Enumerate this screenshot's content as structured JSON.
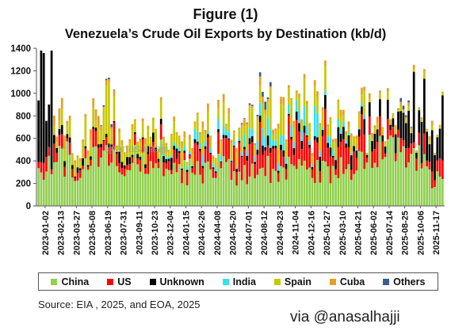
{
  "figure_label": "Figure (1)",
  "title": "Venezuela’s Crude Oil Exports by Destination (kb/d)",
  "source": "Source: EIA , 2025, and EOA, 2025",
  "credit": "via @anasalhajji",
  "watermark": "@anasalhajji",
  "legend": [
    {
      "name": "China",
      "color": "#92d050"
    },
    {
      "name": "US",
      "color": "#ff0000"
    },
    {
      "name": "Unknown",
      "color": "#000000"
    },
    {
      "name": "India",
      "color": "#33e0f0"
    },
    {
      "name": "Spain",
      "color": "#c8c800"
    },
    {
      "name": "Cuba",
      "color": "#e5a024"
    },
    {
      "name": "Others",
      "color": "#3a5f8a"
    }
  ],
  "chart_data": {
    "type": "bar",
    "stacked": true,
    "title": "Venezuela’s Crude Oil Exports by Destination (kb/d)",
    "ylim": [
      0,
      1400
    ],
    "yticks": [
      0,
      200,
      400,
      600,
      800,
      1000,
      1200,
      1400
    ],
    "grid": false,
    "legend_position": "bottom",
    "x_tick_labels": [
      "2023-01-02",
      "2023-02-13",
      "2023-03-27",
      "2023-05-08",
      "2023-06-19",
      "2023-07-31",
      "2023-09-11",
      "2023-10-23",
      "2023-12-04",
      "2024-01-15",
      "2024-02-26",
      "2024-04-08",
      "2024-05-20",
      "2024-07-01",
      "2024-08-12",
      "2024-09-23",
      "2024-11-04",
      "2024-12-16",
      "2025-01-27",
      "2025-03-10",
      "2025-04-21",
      "2025-06-02",
      "2025-07-14",
      "2025-08-25",
      "2025-10-06",
      "2025-11-17"
    ],
    "series_order": [
      "China",
      "US",
      "Unknown",
      "India",
      "Spain",
      "Cuba",
      "Others"
    ],
    "series_colors": [
      "#92d050",
      "#ff0000",
      "#000000",
      "#33e0f0",
      "#c8c800",
      "#e5a024",
      "#3a5f8a"
    ],
    "periods": [
      {
        "label": "2023-01-02",
        "values": [
          320,
          120,
          860,
          0,
          0,
          0,
          0
        ]
      },
      {
        "label": "2023-02-13",
        "values": [
          420,
          110,
          60,
          0,
          120,
          90,
          0
        ]
      },
      {
        "label": "2023-03-27",
        "values": [
          350,
          100,
          50,
          0,
          110,
          30,
          0
        ]
      },
      {
        "label": "2023-05-08",
        "values": [
          380,
          110,
          20,
          0,
          140,
          60,
          0
        ]
      },
      {
        "label": "2023-06-19",
        "values": [
          480,
          160,
          30,
          0,
          380,
          60,
          20
        ]
      },
      {
        "label": "2023-07-31",
        "values": [
          300,
          110,
          70,
          0,
          90,
          30,
          0
        ]
      },
      {
        "label": "2023-09-11",
        "values": [
          420,
          110,
          40,
          0,
          130,
          30,
          0
        ]
      },
      {
        "label": "2023-10-23",
        "values": [
          470,
          170,
          60,
          0,
          160,
          40,
          0
        ]
      },
      {
        "label": "2023-12-04",
        "values": [
          330,
          90,
          90,
          20,
          140,
          30,
          0
        ]
      },
      {
        "label": "2024-01-15",
        "values": [
          300,
          130,
          20,
          40,
          120,
          50,
          0
        ]
      },
      {
        "label": "2024-02-26",
        "values": [
          330,
          130,
          20,
          50,
          100,
          30,
          0
        ]
      },
      {
        "label": "2024-04-08",
        "values": [
          340,
          170,
          20,
          60,
          130,
          40,
          0
        ]
      },
      {
        "label": "2024-05-20",
        "values": [
          300,
          180,
          20,
          30,
          160,
          30,
          0
        ]
      },
      {
        "label": "2024-07-01",
        "values": [
          280,
          200,
          40,
          60,
          150,
          40,
          10
        ]
      },
      {
        "label": "2024-08-12",
        "values": [
          330,
          220,
          50,
          80,
          210,
          40,
          40
        ]
      },
      {
        "label": "2024-09-23",
        "values": [
          300,
          210,
          30,
          90,
          170,
          40,
          0
        ]
      },
      {
        "label": "2024-11-04",
        "values": [
          330,
          220,
          40,
          90,
          140,
          40,
          0
        ]
      },
      {
        "label": "2024-12-16",
        "values": [
          320,
          230,
          40,
          120,
          160,
          30,
          0
        ]
      },
      {
        "label": "2025-01-27",
        "values": [
          330,
          230,
          60,
          60,
          130,
          30,
          0
        ]
      },
      {
        "label": "2025-03-10",
        "values": [
          360,
          200,
          80,
          30,
          120,
          30,
          0
        ]
      },
      {
        "label": "2025-04-21",
        "values": [
          380,
          170,
          90,
          20,
          110,
          30,
          0
        ]
      },
      {
        "label": "2025-06-02",
        "values": [
          560,
          130,
          100,
          0,
          40,
          30,
          0
        ]
      },
      {
        "label": "2025-07-14",
        "values": [
          560,
          100,
          140,
          0,
          40,
          20,
          0
        ]
      },
      {
        "label": "2025-08-25",
        "values": [
          470,
          110,
          280,
          0,
          40,
          30,
          20
        ]
      },
      {
        "label": "2025-10-06",
        "values": [
          400,
          120,
          300,
          0,
          30,
          20,
          0
        ]
      },
      {
        "label": "2025-11-17",
        "values": [
          260,
          120,
          360,
          0,
          30,
          20,
          0
        ]
      }
    ]
  }
}
